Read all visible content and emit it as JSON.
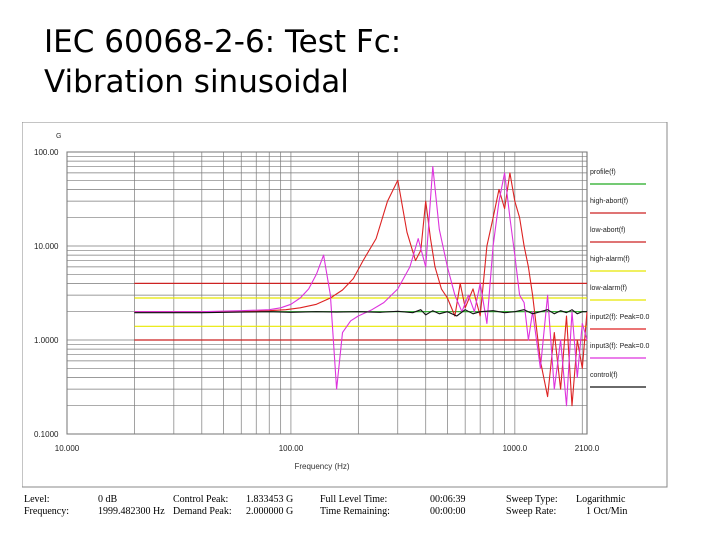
{
  "slide": {
    "title_line1": "IEC 60068-2-6: Test Fc:",
    "title_line2": "Vibration sinusoidal"
  },
  "chart_data": {
    "type": "line",
    "title": "",
    "xlabel": "Frequency (Hz)",
    "ylabel": "G",
    "xscale": "log",
    "yscale": "log",
    "xlim": [
      10,
      2100
    ],
    "ylim": [
      0.1,
      100
    ],
    "x_ticks": [
      {
        "value": 10,
        "label": "10.000"
      },
      {
        "value": 100,
        "label": "100.00"
      },
      {
        "value": 1000,
        "label": "1000.0"
      },
      {
        "value": 2100,
        "label": "2100.0"
      }
    ],
    "y_ticks": [
      {
        "value": 100,
        "label": "100.00"
      },
      {
        "value": 10,
        "label": "10.000"
      },
      {
        "value": 1,
        "label": "1.0000"
      },
      {
        "value": 0.1,
        "label": "0.1000"
      }
    ],
    "grid": true,
    "legend_position": "right",
    "series": [
      {
        "name": "profile(f)",
        "color": "#22aa22",
        "x": [
          20,
          2100
        ],
        "y": [
          2,
          2
        ]
      },
      {
        "name": "high-abort(f)",
        "color": "#cc2222",
        "x": [
          20,
          2100
        ],
        "y": [
          4,
          4
        ]
      },
      {
        "name": "low-abort(f)",
        "color": "#cc2222",
        "x": [
          20,
          2100
        ],
        "y": [
          1,
          1
        ]
      },
      {
        "name": "high-alarm(f)",
        "color": "#e8e800",
        "x": [
          20,
          2100
        ],
        "y": [
          2.8,
          2.8
        ]
      },
      {
        "name": "low-alarm(f)",
        "color": "#e8e800",
        "x": [
          20,
          2100
        ],
        "y": [
          1.4,
          1.4
        ]
      },
      {
        "name": "input2(f): Peak=0.0",
        "color": "#dd2222",
        "x": [
          20,
          40,
          60,
          80,
          95,
          110,
          130,
          150,
          170,
          190,
          210,
          240,
          270,
          300,
          330,
          360,
          380,
          400,
          420,
          440,
          470,
          500,
          540,
          570,
          600,
          650,
          700,
          750,
          800,
          850,
          900,
          950,
          1000,
          1050,
          1100,
          1150,
          1200,
          1300,
          1400,
          1500,
          1600,
          1700,
          1800,
          1900,
          2000,
          2100
        ],
        "y": [
          2.0,
          2.0,
          2.0,
          2.05,
          2.1,
          2.2,
          2.4,
          2.8,
          3.4,
          4.5,
          7.0,
          12.0,
          30.0,
          50.0,
          14.0,
          7.0,
          9.0,
          30.0,
          12.0,
          6.0,
          3.5,
          2.8,
          1.8,
          4.0,
          2.2,
          3.5,
          1.8,
          10.0,
          20.0,
          40.0,
          25.0,
          60.0,
          30.0,
          20.0,
          10.0,
          6.0,
          3.0,
          0.6,
          0.25,
          1.2,
          0.3,
          1.8,
          0.2,
          1.0,
          0.5,
          2.0
        ]
      },
      {
        "name": "input3(f): Peak=0.0",
        "color": "#dd33dd",
        "x": [
          20,
          40,
          60,
          80,
          90,
          100,
          110,
          120,
          130,
          140,
          150,
          160,
          170,
          185,
          200,
          230,
          260,
          300,
          340,
          370,
          400,
          430,
          460,
          500,
          540,
          580,
          620,
          660,
          700,
          750,
          800,
          850,
          900,
          950,
          1000,
          1050,
          1100,
          1150,
          1200,
          1300,
          1400,
          1500,
          1600,
          1700,
          1800,
          1900,
          2000,
          2100
        ],
        "y": [
          2.0,
          2.0,
          2.05,
          2.1,
          2.2,
          2.4,
          2.8,
          3.5,
          5.0,
          8.0,
          3.0,
          0.3,
          1.2,
          1.6,
          1.8,
          2.1,
          2.5,
          3.5,
          6.0,
          12.0,
          6.0,
          70.0,
          15.0,
          6.0,
          3.0,
          2.0,
          3.0,
          2.0,
          4.0,
          1.5,
          10.0,
          30.0,
          60.0,
          20.0,
          8.0,
          3.0,
          2.5,
          1.0,
          2.0,
          0.5,
          3.0,
          0.3,
          1.0,
          0.2,
          2.0,
          0.4,
          1.5,
          1.0
        ]
      },
      {
        "name": "control(f)",
        "color": "#111111",
        "x": [
          20,
          40,
          60,
          80,
          100,
          130,
          160,
          200,
          250,
          300,
          350,
          380,
          400,
          430,
          460,
          500,
          550,
          600,
          650,
          700,
          800,
          900,
          1000,
          1100,
          1200,
          1300,
          1400,
          1500,
          1600,
          1700,
          1800,
          1900,
          2000,
          2100
        ],
        "y": [
          1.95,
          1.95,
          1.98,
          2.0,
          1.97,
          2.0,
          1.98,
          2.0,
          1.97,
          2.02,
          1.95,
          2.1,
          1.85,
          2.05,
          1.9,
          2.0,
          1.8,
          2.1,
          1.9,
          2.0,
          2.05,
          1.95,
          2.0,
          2.1,
          1.9,
          2.0,
          2.1,
          1.9,
          2.05,
          1.95,
          2.1,
          1.9,
          2.0,
          2.0
        ]
      }
    ]
  },
  "status_bar": {
    "level_label": "Level:",
    "level_value": "0 dB",
    "frequency_label": "Frequency:",
    "frequency_value": "1999.482300 Hz",
    "control_peak_label": "Control Peak:",
    "control_peak_value": "1.833453 G",
    "demand_peak_label": "Demand Peak:",
    "demand_peak_value": "2.000000 G",
    "full_level_time_label": "Full Level Time:",
    "full_level_time_value": "00:06:39",
    "time_remaining_label": "Time Remaining:",
    "time_remaining_value": "00:00:00",
    "sweep_type_label": "Sweep Type:",
    "sweep_type_value": "Logarithmic",
    "sweep_rate_label": "Sweep Rate:",
    "sweep_rate_value": "1 Oct/Min"
  }
}
